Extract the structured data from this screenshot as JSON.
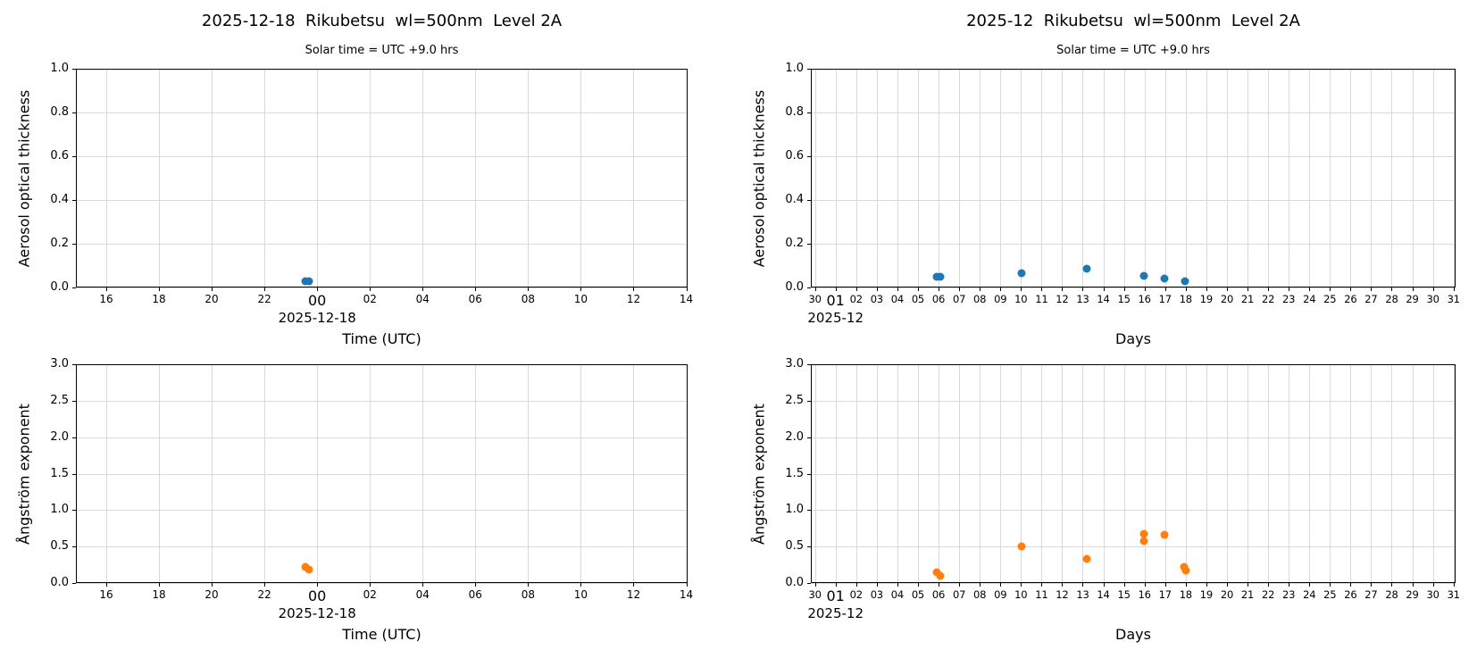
{
  "figure": {
    "background": "#ffffff",
    "grid_color": "#d9d9d9",
    "spine_color": "#000000",
    "accent_blue": "#1f77b4",
    "accent_orange": "#ff7f0e"
  },
  "chart_data": [
    {
      "type": "scatter",
      "id": "aot-single-day",
      "title": "2025-12-18  Rikubetsu  wl=500nm  Level 2A",
      "subtitle": "Solar time = UTC +9.0 hrs",
      "ylabel": "Aerosol optical thickness",
      "xlabel": "Time (UTC)",
      "grid": true,
      "legend": null,
      "xlim": [
        14.85,
        38.05
      ],
      "ylim": [
        0,
        1.0
      ],
      "x_ticks": [
        {
          "v": 16,
          "label": "16"
        },
        {
          "v": 18,
          "label": "18"
        },
        {
          "v": 20,
          "label": "20"
        },
        {
          "v": 22,
          "label": "22"
        },
        {
          "v": 24,
          "label": "00",
          "major": true,
          "date": "2025-12-18"
        },
        {
          "v": 26,
          "label": "02"
        },
        {
          "v": 28,
          "label": "04"
        },
        {
          "v": 30,
          "label": "06"
        },
        {
          "v": 32,
          "label": "08"
        },
        {
          "v": 34,
          "label": "10"
        },
        {
          "v": 36,
          "label": "12"
        },
        {
          "v": 38,
          "label": "14"
        }
      ],
      "y_ticks": [
        {
          "v": 0,
          "label": "0.0"
        },
        {
          "v": 0.2,
          "label": "0.2"
        },
        {
          "v": 0.4,
          "label": "0.4"
        },
        {
          "v": 0.6,
          "label": "0.6"
        },
        {
          "v": 0.8,
          "label": "0.8"
        },
        {
          "v": 1,
          "label": "1.0"
        }
      ],
      "series": [
        {
          "name": "aerosol-optical-thickness",
          "color": "#1f77b4",
          "points": [
            [
              23.55,
              0.03
            ],
            [
              23.68,
              0.027
            ]
          ]
        }
      ]
    },
    {
      "type": "scatter",
      "id": "aot-month",
      "title": "2025-12  Rikubetsu  wl=500nm  Level 2A",
      "subtitle": "Solar time = UTC +9.0 hrs",
      "ylabel": "Aerosol optical thickness",
      "xlabel": "Days",
      "grid": true,
      "legend": null,
      "xlim": [
        -0.2,
        31.1
      ],
      "ylim": [
        0,
        1.0
      ],
      "x_ticks": [
        {
          "v": 0,
          "label": "30"
        },
        {
          "v": 1,
          "label": "01",
          "major": true,
          "date": "2025-12"
        },
        {
          "v": 2,
          "label": "02"
        },
        {
          "v": 3,
          "label": "03"
        },
        {
          "v": 4,
          "label": "04"
        },
        {
          "v": 5,
          "label": "05"
        },
        {
          "v": 6,
          "label": "06"
        },
        {
          "v": 7,
          "label": "07"
        },
        {
          "v": 8,
          "label": "08"
        },
        {
          "v": 9,
          "label": "09"
        },
        {
          "v": 10,
          "label": "10"
        },
        {
          "v": 11,
          "label": "11"
        },
        {
          "v": 12,
          "label": "12"
        },
        {
          "v": 13,
          "label": "13"
        },
        {
          "v": 14,
          "label": "14"
        },
        {
          "v": 15,
          "label": "15"
        },
        {
          "v": 16,
          "label": "16"
        },
        {
          "v": 17,
          "label": "17"
        },
        {
          "v": 18,
          "label": "18"
        },
        {
          "v": 19,
          "label": "19"
        },
        {
          "v": 20,
          "label": "20"
        },
        {
          "v": 21,
          "label": "21"
        },
        {
          "v": 22,
          "label": "22"
        },
        {
          "v": 23,
          "label": "23"
        },
        {
          "v": 24,
          "label": "24"
        },
        {
          "v": 25,
          "label": "25"
        },
        {
          "v": 26,
          "label": "26"
        },
        {
          "v": 27,
          "label": "27"
        },
        {
          "v": 28,
          "label": "28"
        },
        {
          "v": 29,
          "label": "29"
        },
        {
          "v": 30,
          "label": "30"
        },
        {
          "v": 31,
          "label": "31"
        }
      ],
      "y_ticks": [
        {
          "v": 0,
          "label": "0.0"
        },
        {
          "v": 0.2,
          "label": "0.2"
        },
        {
          "v": 0.4,
          "label": "0.4"
        },
        {
          "v": 0.6,
          "label": "0.6"
        },
        {
          "v": 0.8,
          "label": "0.8"
        },
        {
          "v": 1,
          "label": "1.0"
        }
      ],
      "series": [
        {
          "name": "aerosol-optical-thickness",
          "color": "#1f77b4",
          "points": [
            [
              5.93,
              0.05
            ],
            [
              6.07,
              0.048
            ],
            [
              10.05,
              0.066
            ],
            [
              13.2,
              0.085
            ],
            [
              15.97,
              0.055
            ],
            [
              16.97,
              0.039
            ],
            [
              17.97,
              0.028
            ]
          ]
        }
      ]
    },
    {
      "type": "scatter",
      "id": "angstrom-single-day",
      "title": "",
      "subtitle": "",
      "ylabel": "Ångström exponent",
      "xlabel": "Time (UTC)",
      "grid": true,
      "legend": null,
      "xlim": [
        14.85,
        38.05
      ],
      "ylim": [
        0,
        3.0
      ],
      "x_ticks": [
        {
          "v": 16,
          "label": "16"
        },
        {
          "v": 18,
          "label": "18"
        },
        {
          "v": 20,
          "label": "20"
        },
        {
          "v": 22,
          "label": "22"
        },
        {
          "v": 24,
          "label": "00",
          "major": true,
          "date": "2025-12-18"
        },
        {
          "v": 26,
          "label": "02"
        },
        {
          "v": 28,
          "label": "04"
        },
        {
          "v": 30,
          "label": "06"
        },
        {
          "v": 32,
          "label": "08"
        },
        {
          "v": 34,
          "label": "10"
        },
        {
          "v": 36,
          "label": "12"
        },
        {
          "v": 38,
          "label": "14"
        }
      ],
      "y_ticks": [
        {
          "v": 0,
          "label": "0.0"
        },
        {
          "v": 0.5,
          "label": "0.5"
        },
        {
          "v": 1,
          "label": "1.0"
        },
        {
          "v": 1.5,
          "label": "1.5"
        },
        {
          "v": 2,
          "label": "2.0"
        },
        {
          "v": 2.5,
          "label": "2.5"
        },
        {
          "v": 3,
          "label": "3.0"
        }
      ],
      "series": [
        {
          "name": "angstrom-exponent",
          "color": "#ff7f0e",
          "points": [
            [
              23.55,
              0.225
            ],
            [
              23.68,
              0.18
            ]
          ]
        }
      ]
    },
    {
      "type": "scatter",
      "id": "angstrom-month",
      "title": "",
      "subtitle": "",
      "ylabel": "Ångström exponent",
      "xlabel": "Days",
      "grid": true,
      "legend": null,
      "xlim": [
        -0.2,
        31.1
      ],
      "ylim": [
        0,
        3.0
      ],
      "x_ticks": [
        {
          "v": 0,
          "label": "30"
        },
        {
          "v": 1,
          "label": "01",
          "major": true,
          "date": "2025-12"
        },
        {
          "v": 2,
          "label": "02"
        },
        {
          "v": 3,
          "label": "03"
        },
        {
          "v": 4,
          "label": "04"
        },
        {
          "v": 5,
          "label": "05"
        },
        {
          "v": 6,
          "label": "06"
        },
        {
          "v": 7,
          "label": "07"
        },
        {
          "v": 8,
          "label": "08"
        },
        {
          "v": 9,
          "label": "09"
        },
        {
          "v": 10,
          "label": "10"
        },
        {
          "v": 11,
          "label": "11"
        },
        {
          "v": 12,
          "label": "12"
        },
        {
          "v": 13,
          "label": "13"
        },
        {
          "v": 14,
          "label": "14"
        },
        {
          "v": 15,
          "label": "15"
        },
        {
          "v": 16,
          "label": "16"
        },
        {
          "v": 17,
          "label": "17"
        },
        {
          "v": 18,
          "label": "18"
        },
        {
          "v": 19,
          "label": "19"
        },
        {
          "v": 20,
          "label": "20"
        },
        {
          "v": 21,
          "label": "21"
        },
        {
          "v": 22,
          "label": "22"
        },
        {
          "v": 23,
          "label": "23"
        },
        {
          "v": 24,
          "label": "24"
        },
        {
          "v": 25,
          "label": "25"
        },
        {
          "v": 26,
          "label": "26"
        },
        {
          "v": 27,
          "label": "27"
        },
        {
          "v": 28,
          "label": "28"
        },
        {
          "v": 29,
          "label": "29"
        },
        {
          "v": 30,
          "label": "30"
        },
        {
          "v": 31,
          "label": "31"
        }
      ],
      "y_ticks": [
        {
          "v": 0,
          "label": "0.0"
        },
        {
          "v": 0.5,
          "label": "0.5"
        },
        {
          "v": 1,
          "label": "1.0"
        },
        {
          "v": 1.5,
          "label": "1.5"
        },
        {
          "v": 2,
          "label": "2.0"
        },
        {
          "v": 2.5,
          "label": "2.5"
        },
        {
          "v": 3,
          "label": "3.0"
        }
      ],
      "series": [
        {
          "name": "angstrom-exponent",
          "color": "#ff7f0e",
          "points": [
            [
              5.93,
              0.15
            ],
            [
              6.07,
              0.1
            ],
            [
              10.05,
              0.5
            ],
            [
              13.2,
              0.33
            ],
            [
              15.95,
              0.67
            ],
            [
              15.99,
              0.575
            ],
            [
              16.97,
              0.66
            ],
            [
              17.94,
              0.225
            ],
            [
              17.99,
              0.175
            ]
          ]
        }
      ]
    }
  ]
}
